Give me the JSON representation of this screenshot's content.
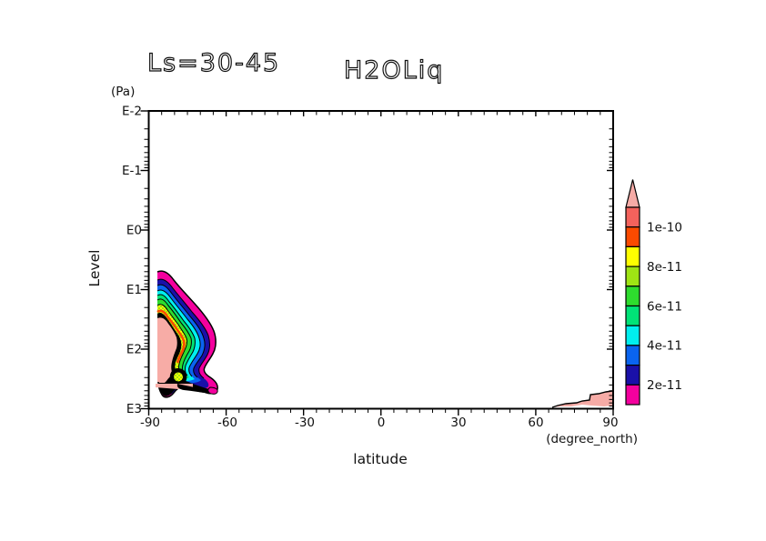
{
  "figure": {
    "left_title": "Ls=30-45",
    "main_title": "H2OLiq",
    "y_axis": {
      "unit_label": "(Pa)",
      "axis_label": "Level",
      "tick_labels": [
        "E-2",
        "E-1",
        "E0",
        "E1",
        "E2",
        "E3"
      ]
    },
    "x_axis": {
      "axis_label": "latitude",
      "unit_label": "(degree_north)",
      "tick_labels": [
        "-90",
        "-60",
        "-30",
        "0",
        "30",
        "60",
        "90"
      ]
    },
    "colorbar_labels": [
      "1e-10",
      "8e-11",
      "6e-11",
      "4e-11",
      "2e-11"
    ]
  },
  "colors": {
    "background": "#ffffff",
    "frame": "#000000",
    "light_pink": "#f6aba6",
    "map_interior_pink": "#f7aca6",
    "salmon_red": "#f4625c",
    "orange_red": "#fb4a00",
    "yellow": "#ffff00",
    "yellow_green": "#9fe414",
    "green": "#2edc2e",
    "spring_green": "#00e377",
    "cyan": "#00efef",
    "blue": "#0a64f0",
    "navy": "#1a10a8",
    "magenta": "#f4009e"
  },
  "chart_data": {
    "type": "contour",
    "title": "H2OLiq",
    "panel_label": "Ls=30-45",
    "xlabel": "latitude",
    "x_units": "degree_north",
    "xlim": [
      -90,
      90
    ],
    "x_major_ticks": [
      -90,
      -60,
      -30,
      0,
      30,
      60,
      90
    ],
    "x_minor_tick_step_deg": 5,
    "ylabel": "Level",
    "y_units": "Pa",
    "y_scale": "log10",
    "y_tick_values_pa": [
      "1e-2",
      "1e-1",
      "1e0",
      "1e1",
      "1e2",
      "1e3"
    ],
    "y_direction": "pressure increases downward (1e-2 Pa at top, 1e3 Pa at bottom)",
    "colorbar": {
      "orientation": "vertical, right of plot, triangular over-range tip on top",
      "labeled_levels": [
        "1e-10",
        "8e-11",
        "6e-11",
        "4e-11",
        "2e-11"
      ],
      "cell_edges_low_to_high": [
        "1e-11",
        "2e-11",
        "3e-11",
        "4e-11",
        "5e-11",
        "6e-11",
        "7e-11",
        "8e-11",
        "9e-11",
        "1e-10",
        "1.1e-10"
      ],
      "cell_colors_low_to_high": [
        "#f4009e",
        "#1a10a8",
        "#0a64f0",
        "#00efef",
        "#00e377",
        "#2edc2e",
        "#9fe414",
        "#ffff00",
        "#fb4a00",
        "#f4625c"
      ],
      "over_range_color": "#f6aba6"
    },
    "features": [
      {
        "name": "south-polar-cloud-maximum",
        "lat_range": [
          -90,
          -62
        ],
        "level_range_pa": [
          8,
          600
        ],
        "description": "Nested filled-contour bands increasing inward: magenta rim (<2e-11), then navy, blue, cyan, spring-green, green, dithered yellow-green/yellow, thin orange-red, a thick black ring of crowded contour lines, and a light-pink core (>1.1e-10). A small secondary pocket and a thin black/magenta tail extend toward -65 latitude near 400-600 Pa."
      },
      {
        "name": "north-polar-near-surface-layer",
        "lat_range": [
          62,
          90
        ],
        "level_range_pa": [
          600,
          1000
        ],
        "description": "Thin light-pink layer hugging the bottom (1e3 Pa) axis, bounded above by a stepped black contour line rising toward 90 degrees."
      }
    ]
  }
}
